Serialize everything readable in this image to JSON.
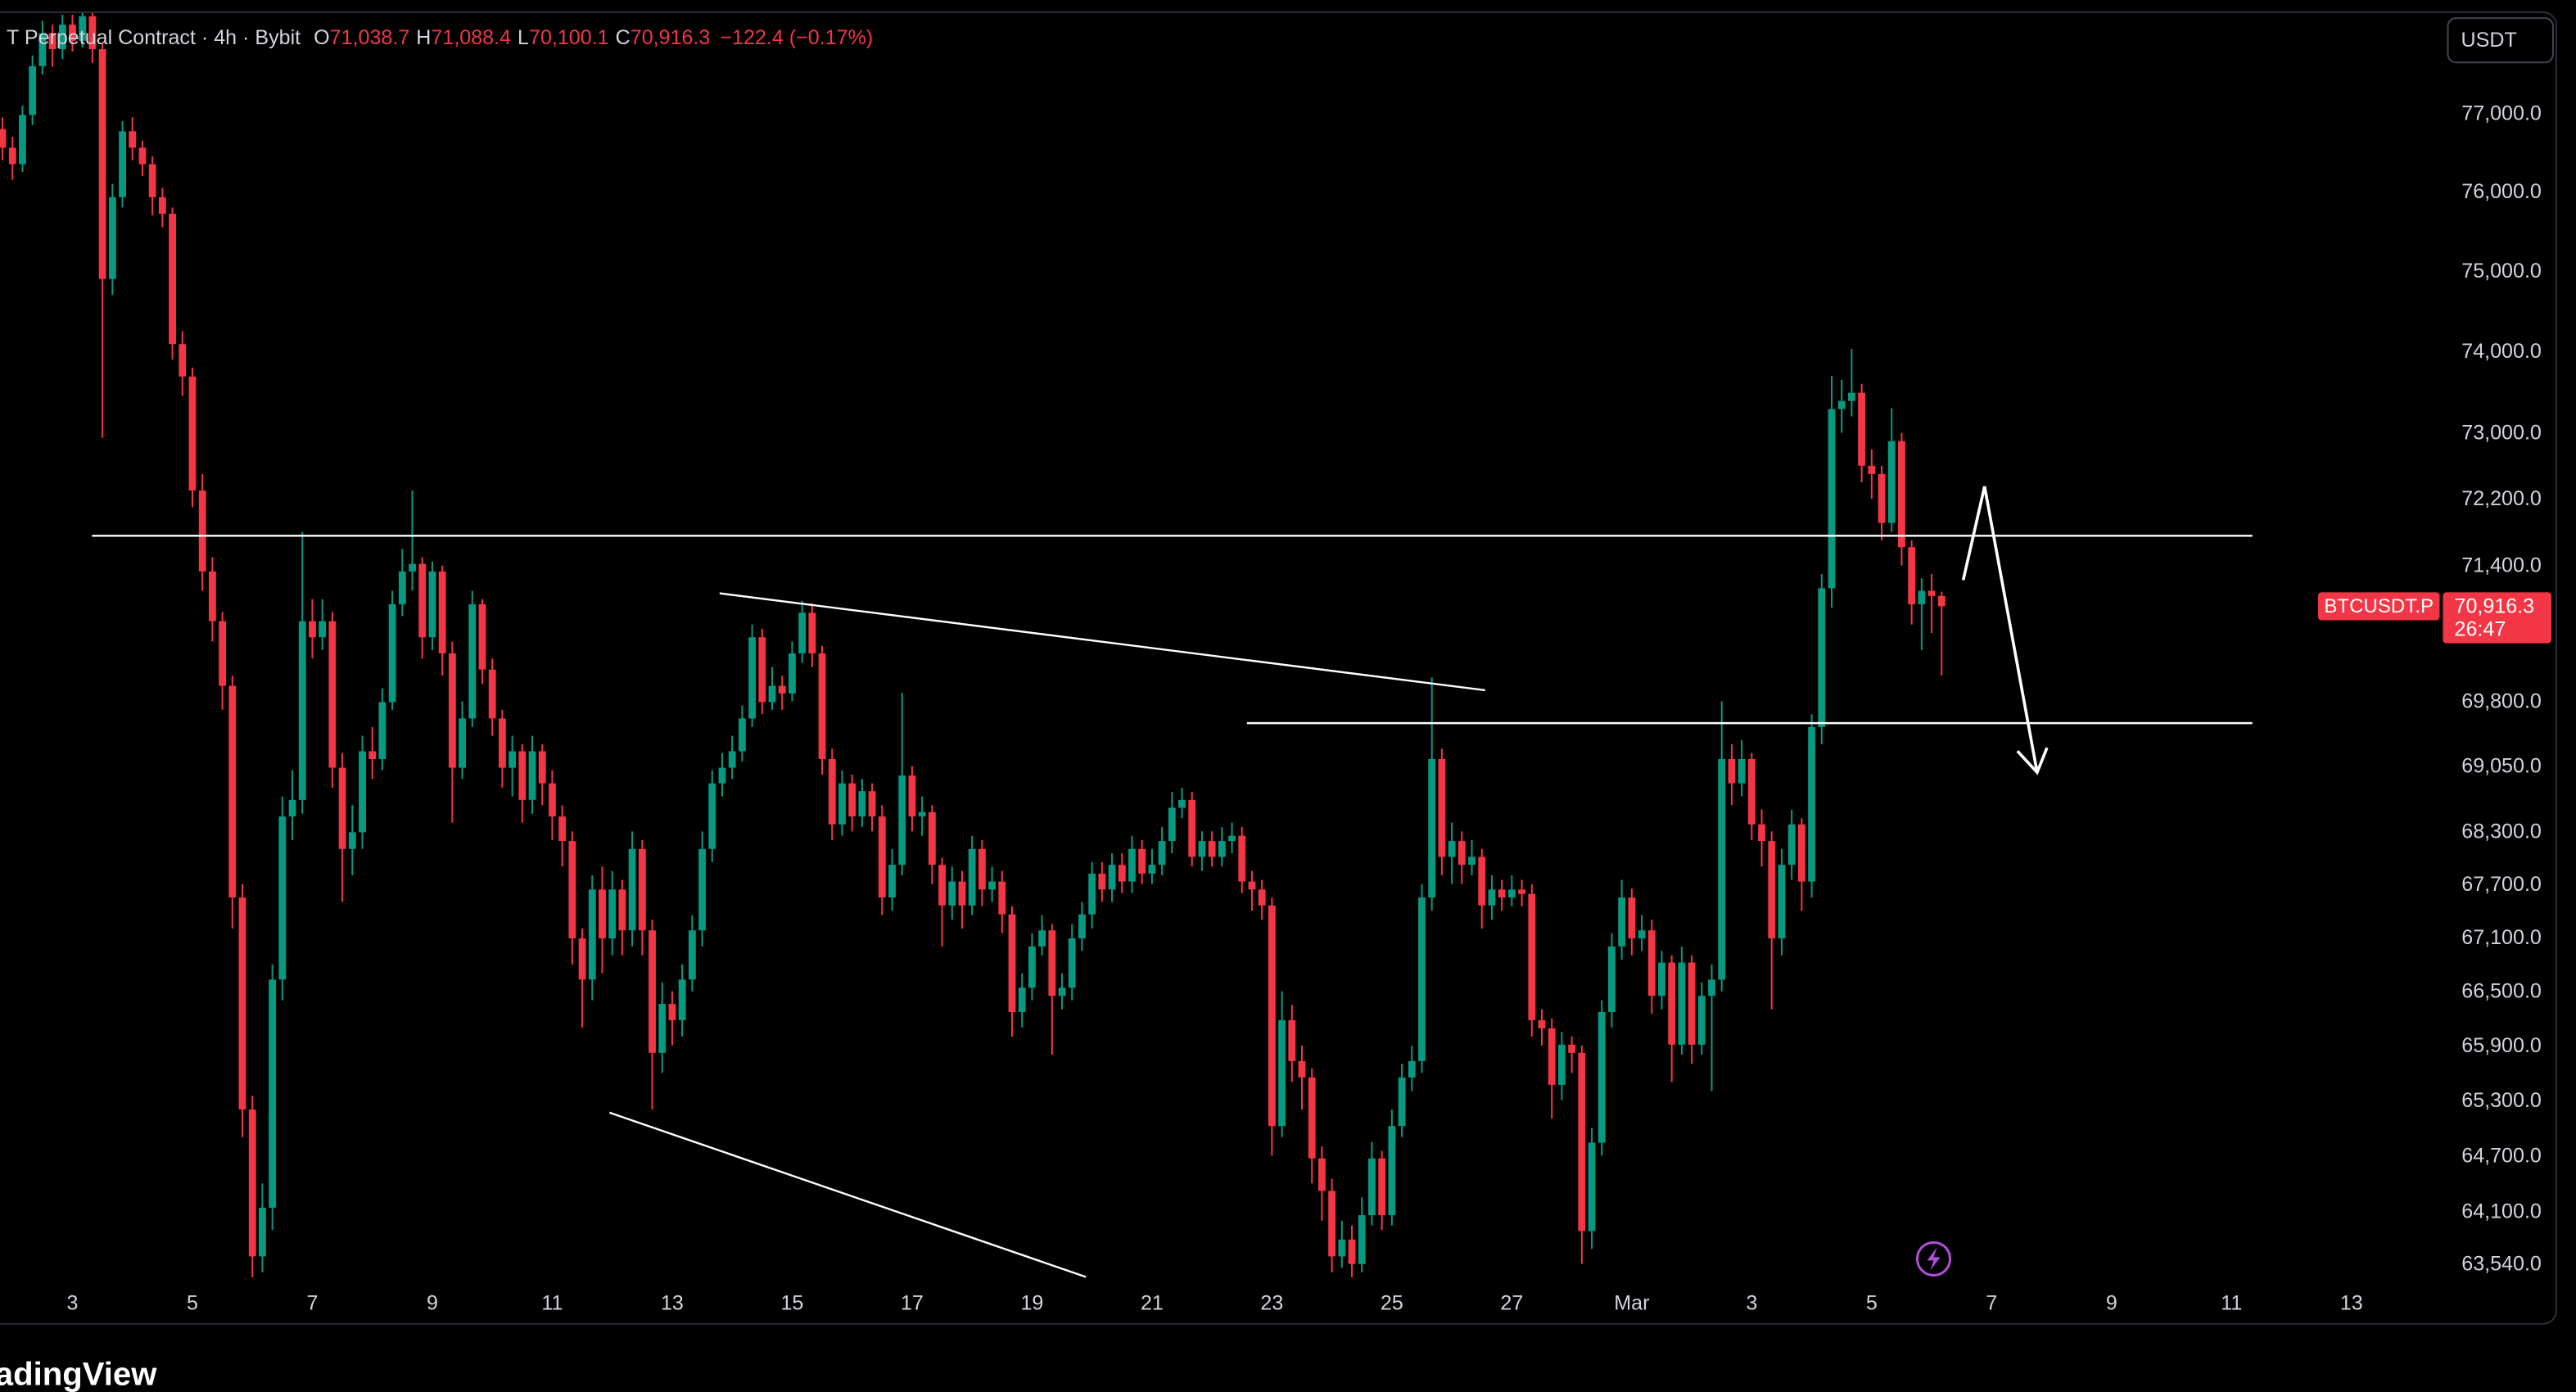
{
  "chart_data": {
    "type": "candlestick",
    "title": "T Perpetual Contract · 4h · Bybit",
    "ohlc_legend": [
      {
        "key": "O",
        "label": "71,038.7"
      },
      {
        "key": "H",
        "label": "71,088.4"
      },
      {
        "key": "L",
        "label": "70,100.1"
      },
      {
        "key": "C",
        "label": "70,916.3"
      }
    ],
    "change_label": "−122.4 (−0.17%)",
    "currency_button": "USDT",
    "symbol_badge": "BTCUSDT.P",
    "last_label": {
      "value": 70916.3,
      "label": "70,916.3"
    },
    "countdown": "26:47",
    "logo": "TradingView",
    "up_color": "#089981",
    "down_color": "#f23645",
    "log_scale": true,
    "grid": false,
    "x": [
      20,
      24,
      28,
      32,
      36,
      40,
      44,
      48,
      52,
      56,
      60,
      64,
      68,
      72,
      76,
      80,
      84,
      88,
      92,
      96,
      100,
      104,
      108,
      112,
      116,
      120,
      124,
      128,
      132,
      136,
      140,
      144,
      148,
      152,
      156,
      160,
      164,
      168,
      172,
      176,
      180,
      184,
      188,
      192,
      196,
      200,
      204,
      208,
      212,
      216,
      220,
      224,
      228,
      232,
      236,
      240,
      244,
      248,
      252,
      256,
      260,
      264,
      268,
      272,
      276,
      280,
      284,
      288,
      292,
      296,
      300,
      304,
      308,
      312,
      316,
      320,
      324,
      328,
      332,
      336,
      340,
      344,
      348,
      352,
      356,
      360,
      364,
      368,
      372,
      376,
      380,
      384,
      388,
      392,
      396,
      400,
      404,
      408,
      412,
      416,
      420,
      424,
      428,
      432,
      436,
      440,
      444,
      448,
      452,
      456,
      460,
      464,
      468,
      472,
      476,
      480,
      484,
      488,
      492,
      496,
      500,
      504,
      508,
      512,
      516,
      520,
      524,
      528,
      532,
      536,
      540,
      544,
      548,
      552,
      556,
      560,
      564,
      568,
      572,
      576,
      580,
      584,
      588,
      592,
      596,
      600,
      604,
      608,
      612,
      616,
      620,
      624,
      628,
      632,
      636,
      640,
      644,
      648,
      652,
      656,
      660,
      664,
      668,
      672,
      676,
      680,
      684,
      688,
      692,
      696,
      700,
      704,
      708,
      712,
      716,
      720,
      724,
      728,
      732,
      736,
      740,
      744,
      748,
      752,
      756,
      760,
      764,
      768,
      772,
      776,
      780,
      784,
      788,
      792,
      796
    ],
    "open": [
      76800,
      76560,
      76350,
      76980,
      77610,
      78040,
      77830,
      78150,
      77940,
      78260,
      77830,
      74900,
      75930,
      76770,
      76560,
      76350,
      75930,
      75720,
      74090,
      73690,
      72300,
      71330,
      70740,
      69980,
      67550,
      65200,
      63620,
      64140,
      66630,
      68470,
      68660,
      70740,
      70550,
      70740,
      69030,
      68100,
      68290,
      69220,
      69130,
      69790,
      70940,
      71330,
      71420,
      70550,
      71330,
      70360,
      69030,
      69600,
      70940,
      70170,
      69600,
      69030,
      69220,
      68660,
      69220,
      68850,
      68470,
      68190,
      67090,
      66630,
      67640,
      67090,
      67640,
      67180,
      68100,
      67180,
      65820,
      66360,
      66180,
      66630,
      67180,
      68100,
      68850,
      69030,
      69220,
      69600,
      70550,
      69790,
      69980,
      69890,
      70360,
      70840,
      70360,
      69130,
      68380,
      68850,
      68470,
      68760,
      68470,
      67550,
      67920,
      68940,
      68470,
      68520,
      67920,
      67460,
      67730,
      67460,
      68100,
      67640,
      67730,
      67360,
      66270,
      66540,
      67000,
      67180,
      66450,
      66540,
      67090,
      67360,
      67820,
      67640,
      67920,
      67730,
      68100,
      67820,
      67920,
      68190,
      68570,
      68660,
      68010,
      68190,
      68010,
      68190,
      68250,
      67730,
      67640,
      67460,
      65020,
      66180,
      65730,
      65550,
      64670,
      64320,
      63620,
      63800,
      63540,
      64060,
      64670,
      64060,
      65020,
      65550,
      65730,
      67550,
      69130,
      68010,
      68190,
      67920,
      68010,
      67460,
      67640,
      67550,
      67640,
      67590,
      66180,
      66090,
      65470,
      65910,
      65820,
      63890,
      64840,
      66270,
      67000,
      67550,
      67090,
      67180,
      66450,
      66820,
      65910,
      66820,
      65910,
      66450,
      66630,
      69130,
      68850,
      69130,
      68380,
      68190,
      67090,
      67920,
      68380,
      67730,
      69500,
      71130,
      73290,
      73390,
      73490,
      72600,
      72500,
      71910,
      72900,
      71620,
      70940,
      71100,
      71038.7
    ],
    "high": [
      76950,
      76700,
      77100,
      77750,
      78200,
      78150,
      78280,
      78280,
      78400,
      78350,
      77900,
      76100,
      76900,
      76950,
      76650,
      76450,
      76050,
      75800,
      74250,
      73800,
      72500,
      71500,
      70850,
      70100,
      67700,
      65350,
      64400,
      66800,
      68700,
      69000,
      71800,
      71000,
      71000,
      70850,
      69200,
      68600,
      69400,
      69500,
      69950,
      71100,
      71600,
      72300,
      71500,
      71450,
      71400,
      70500,
      69800,
      71100,
      71000,
      70300,
      69700,
      69400,
      69300,
      69400,
      69300,
      69000,
      68600,
      68300,
      67200,
      67800,
      67900,
      67850,
      67750,
      68300,
      68200,
      67300,
      66600,
      66500,
      66800,
      67350,
      68300,
      69000,
      69200,
      69400,
      69750,
      70700,
      70650,
      70200,
      70100,
      70500,
      70980,
      70950,
      70450,
      69250,
      69000,
      68950,
      68900,
      68850,
      68600,
      68100,
      69900,
      69050,
      68700,
      68600,
      68000,
      67900,
      67850,
      68250,
      68200,
      67900,
      67850,
      67450,
      66700,
      67150,
      67350,
      67250,
      66700,
      67250,
      67500,
      67950,
      67950,
      68050,
      68050,
      68250,
      68200,
      68100,
      68350,
      68750,
      68800,
      68750,
      68300,
      68300,
      68350,
      68400,
      68350,
      67850,
      67750,
      67550,
      66500,
      66350,
      65900,
      65650,
      64800,
      64450,
      64000,
      63950,
      64250,
      64850,
      64750,
      65200,
      65700,
      65900,
      67700,
      70080,
      69250,
      68400,
      68300,
      68200,
      68100,
      67800,
      67750,
      67800,
      67750,
      67700,
      66300,
      66200,
      66050,
      66000,
      65900,
      65000,
      66400,
      67150,
      67750,
      67650,
      67350,
      67300,
      66950,
      66900,
      67000,
      66900,
      66600,
      66800,
      69800,
      69300,
      69350,
      69200,
      68550,
      68300,
      68100,
      68550,
      68450,
      69650,
      71300,
      73700,
      73650,
      74030,
      73600,
      72800,
      72600,
      73300,
      73000,
      71700,
      71250,
      71300,
      71088.4
    ],
    "low": [
      76400,
      76150,
      76250,
      76850,
      77500,
      77600,
      77700,
      77800,
      77850,
      77650,
      72940,
      74700,
      75800,
      76400,
      76200,
      75700,
      75550,
      73900,
      73450,
      72100,
      71100,
      70500,
      69700,
      67200,
      64900,
      63400,
      63450,
      63900,
      66400,
      68200,
      68500,
      70300,
      70400,
      68800,
      67500,
      67800,
      68100,
      68900,
      69000,
      69700,
      70800,
      71100,
      70300,
      70400,
      70100,
      68400,
      68900,
      69500,
      70000,
      69400,
      68800,
      68700,
      68400,
      68500,
      68600,
      68200,
      67900,
      66800,
      66100,
      66400,
      66700,
      66900,
      66900,
      67000,
      66900,
      65200,
      65600,
      65900,
      66000,
      66500,
      67000,
      67950,
      68700,
      68900,
      69100,
      69500,
      69650,
      69700,
      69700,
      69800,
      70250,
      70200,
      68950,
      68200,
      68250,
      68300,
      68350,
      68300,
      67350,
      67400,
      67800,
      68300,
      68250,
      67700,
      67000,
      67300,
      67200,
      67350,
      67450,
      67500,
      67150,
      66000,
      66100,
      66400,
      66900,
      65800,
      66300,
      66400,
      66950,
      67200,
      67500,
      67500,
      67600,
      67600,
      67700,
      67700,
      67800,
      68050,
      68450,
      67900,
      67850,
      67900,
      67900,
      68050,
      67600,
      67400,
      67300,
      64700,
      64900,
      65500,
      65200,
      64400,
      64000,
      63450,
      63500,
      63400,
      63450,
      63950,
      63900,
      63950,
      64900,
      65400,
      65600,
      67400,
      67800,
      67700,
      67700,
      67800,
      67200,
      67300,
      67400,
      67450,
      67450,
      66000,
      65900,
      65100,
      65300,
      65600,
      63540,
      63700,
      64700,
      66100,
      66850,
      66900,
      66950,
      66250,
      66300,
      65500,
      65800,
      65700,
      65800,
      65400,
      66500,
      68600,
      68700,
      68200,
      67900,
      66300,
      66900,
      67750,
      67400,
      67550,
      69300,
      70900,
      73000,
      73200,
      72400,
      72200,
      71700,
      71800,
      71400,
      70700,
      70400,
      70600,
      70100.1
    ],
    "close": [
      76560,
      76350,
      76980,
      77610,
      78040,
      77830,
      78150,
      77940,
      78260,
      77830,
      74900,
      75930,
      76770,
      76560,
      76350,
      75930,
      75720,
      74090,
      73690,
      72300,
      71330,
      70740,
      69980,
      67550,
      65200,
      63620,
      64140,
      66630,
      68470,
      68660,
      70740,
      70550,
      70740,
      69030,
      68100,
      68290,
      69220,
      69130,
      69790,
      70940,
      71330,
      71420,
      70550,
      71330,
      70360,
      69030,
      69600,
      70940,
      70170,
      69600,
      69030,
      69220,
      68660,
      69220,
      68850,
      68470,
      68190,
      67090,
      66630,
      67640,
      67090,
      67640,
      67180,
      68100,
      67180,
      65820,
      66360,
      66180,
      66630,
      67180,
      68100,
      68850,
      69030,
      69220,
      69600,
      70550,
      69790,
      69980,
      69890,
      70360,
      70840,
      70360,
      69130,
      68380,
      68850,
      68470,
      68760,
      68470,
      67550,
      67920,
      68940,
      68470,
      68520,
      67920,
      67460,
      67730,
      67460,
      68100,
      67640,
      67730,
      67360,
      66270,
      66540,
      67000,
      67180,
      66450,
      66540,
      67090,
      67360,
      67820,
      67640,
      67920,
      67730,
      68100,
      67820,
      67920,
      68190,
      68570,
      68660,
      68010,
      68190,
      68010,
      68190,
      68250,
      67730,
      67640,
      67460,
      65020,
      66180,
      65730,
      65550,
      64670,
      64320,
      63620,
      63800,
      63540,
      64060,
      64670,
      64060,
      65020,
      65550,
      65730,
      67550,
      69130,
      68010,
      68190,
      67920,
      68010,
      67460,
      67640,
      67550,
      67640,
      67590,
      66180,
      66090,
      65470,
      65910,
      65820,
      63890,
      64840,
      66270,
      67000,
      67550,
      67090,
      67180,
      66450,
      66820,
      65910,
      66820,
      65910,
      66450,
      66630,
      69130,
      68850,
      69130,
      68380,
      68190,
      67090,
      67920,
      68380,
      67730,
      69500,
      71130,
      73290,
      73390,
      73490,
      72600,
      72500,
      71910,
      72900,
      71620,
      70940,
      71100,
      71038.7,
      70916.3
    ],
    "xlim": [
      19,
      992
    ],
    "xticks": [
      {
        "value": 48,
        "label": "3"
      },
      {
        "value": 96,
        "label": "5"
      },
      {
        "value": 144,
        "label": "7"
      },
      {
        "value": 192,
        "label": "9"
      },
      {
        "value": 240,
        "label": "11"
      },
      {
        "value": 288,
        "label": "13"
      },
      {
        "value": 336,
        "label": "15"
      },
      {
        "value": 384,
        "label": "17"
      },
      {
        "value": 432,
        "label": "19"
      },
      {
        "value": 480,
        "label": "21"
      },
      {
        "value": 528,
        "label": "23"
      },
      {
        "value": 576,
        "label": "25"
      },
      {
        "value": 624,
        "label": "27"
      },
      {
        "value": 672,
        "label": "Mar"
      },
      {
        "value": 720,
        "label": "3"
      },
      {
        "value": 768,
        "label": "5"
      },
      {
        "value": 816,
        "label": "7"
      },
      {
        "value": 864,
        "label": "9"
      },
      {
        "value": 912,
        "label": "11"
      },
      {
        "value": 960,
        "label": "13"
      }
    ],
    "ylim": [
      63350,
      78300
    ],
    "yticks": [
      {
        "value": 77000,
        "label": "77,000.0"
      },
      {
        "value": 76000,
        "label": "76,000.0"
      },
      {
        "value": 75000,
        "label": "75,000.0"
      },
      {
        "value": 74000,
        "label": "74,000.0"
      },
      {
        "value": 73000,
        "label": "73,000.0"
      },
      {
        "value": 72200,
        "label": "72,200.0"
      },
      {
        "value": 71400,
        "label": "71,400.0"
      },
      {
        "value": 69800,
        "label": "69,800.0"
      },
      {
        "value": 69050,
        "label": "69,050.0"
      },
      {
        "value": 68300,
        "label": "68,300.0"
      },
      {
        "value": 67700,
        "label": "67,700.0"
      },
      {
        "value": 67100,
        "label": "67,100.0"
      },
      {
        "value": 66500,
        "label": "66,500.0"
      },
      {
        "value": 65900,
        "label": "65,900.0"
      },
      {
        "value": 65300,
        "label": "65,300.0"
      },
      {
        "value": 64700,
        "label": "64,700.0"
      },
      {
        "value": 64100,
        "label": "64,100.0"
      },
      {
        "value": 63540,
        "label": "63,540.0"
      }
    ]
  }
}
